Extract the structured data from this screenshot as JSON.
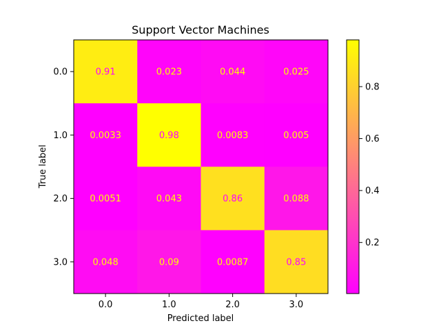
{
  "chart_data": {
    "type": "heatmap",
    "title": "Support Vector Machines",
    "xlabel": "Predicted label",
    "ylabel": "True label",
    "x_categories": [
      "0.0",
      "1.0",
      "2.0",
      "3.0"
    ],
    "y_categories": [
      "0.0",
      "1.0",
      "2.0",
      "3.0"
    ],
    "values": [
      [
        0.91,
        0.023,
        0.044,
        0.025
      ],
      [
        0.0033,
        0.98,
        0.0083,
        0.005
      ],
      [
        0.0051,
        0.043,
        0.86,
        0.088
      ],
      [
        0.048,
        0.09,
        0.0087,
        0.85
      ]
    ],
    "cell_labels": [
      [
        "0.91",
        "0.023",
        "0.044",
        "0.025"
      ],
      [
        "0.0033",
        "0.98",
        "0.0083",
        "0.005"
      ],
      [
        "0.0051",
        "0.043",
        "0.86",
        "0.088"
      ],
      [
        "0.048",
        "0.09",
        "0.0087",
        "0.85"
      ]
    ],
    "colormap": "spring",
    "colormap_colors": [
      "#ff00ff",
      "#ffff00"
    ],
    "cell_text_color_on_light": "#ff00ff",
    "cell_text_color_on_dark": "#ffff00",
    "colorbar": {
      "range": [
        0.0033,
        0.98
      ],
      "ticks": [
        0.2,
        0.4,
        0.6,
        0.8
      ],
      "tick_labels": [
        "0.2",
        "0.4",
        "0.6",
        "0.8"
      ]
    },
    "grid": false
  }
}
